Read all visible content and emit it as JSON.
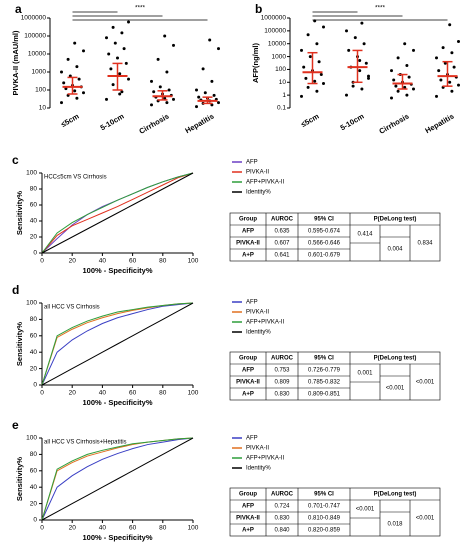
{
  "chart_data": [
    {
      "type": "dot",
      "label": "a",
      "ylabel": "PIVKA-II (mAU/ml)",
      "log_scale": true,
      "sig": "****",
      "ylim": [
        10,
        1000000
      ],
      "yticks": [
        10,
        100,
        1000,
        10000,
        100000,
        1000000
      ],
      "dot_color": "#000000",
      "summary_color": "#e0301e",
      "groups": [
        {
          "name": "≤5cm",
          "points": [
            20,
            35,
            50,
            70,
            90,
            120,
            150,
            180,
            250,
            400,
            600,
            1000,
            2000,
            5000,
            15000,
            40000
          ],
          "median": 150,
          "q1": 60,
          "q3": 500
        },
        {
          "name": "5-10cm",
          "points": [
            30,
            80,
            200,
            400,
            800,
            1500,
            3000,
            6000,
            10000,
            20000,
            40000,
            80000,
            150000,
            300000,
            600000,
            60
          ],
          "median": 600,
          "q1": 100,
          "q3": 3000
        },
        {
          "name": "Cirrhosis",
          "points": [
            15,
            20,
            25,
            30,
            35,
            40,
            50,
            60,
            80,
            100,
            150,
            300,
            1000,
            5000,
            30000,
            100000
          ],
          "median": 45,
          "q1": 28,
          "q3": 90
        },
        {
          "name": "Hepatitis",
          "points": [
            12,
            15,
            18,
            20,
            25,
            28,
            30,
            35,
            40,
            50,
            70,
            100,
            300,
            1500,
            20000,
            60000
          ],
          "median": 25,
          "q1": 18,
          "q3": 40
        }
      ]
    },
    {
      "type": "dot",
      "label": "b",
      "ylabel": "AFP(ng/ml)",
      "log_scale": true,
      "sig": "****",
      "ylim": [
        0.1,
        1000000
      ],
      "yticks": [
        0.1,
        1,
        10,
        100,
        1000,
        10000,
        100000,
        1000000
      ],
      "dot_color": "#000000",
      "summary_color": "#e0301e",
      "groups": [
        {
          "name": "≤5cm",
          "points": [
            0.8,
            2,
            4,
            8,
            12,
            20,
            40,
            80,
            150,
            400,
            1000,
            3000,
            10000,
            50000,
            200000,
            600000
          ],
          "median": 60,
          "q1": 8,
          "q3": 2000
        },
        {
          "name": "5-10cm",
          "points": [
            1,
            3,
            10,
            30,
            80,
            150,
            300,
            1000,
            3000,
            10000,
            30000,
            100000,
            400000,
            5,
            20,
            500
          ],
          "median": 150,
          "q1": 10,
          "q3": 3000
        },
        {
          "name": "Cirrhosis",
          "points": [
            0.6,
            1,
            2,
            3,
            4,
            5,
            7,
            10,
            15,
            25,
            40,
            80,
            200,
            800,
            3000,
            10000
          ],
          "median": 8,
          "q1": 3,
          "q3": 40
        },
        {
          "name": "Hepatitis",
          "points": [
            0.8,
            2,
            4,
            6,
            10,
            15,
            25,
            40,
            80,
            150,
            300,
            800,
            2000,
            5000,
            15000,
            300000
          ],
          "median": 30,
          "q1": 5,
          "q3": 400
        }
      ]
    },
    {
      "type": "line",
      "label": "c",
      "subtitle": "HCC≤5cm VS Cirrhosis",
      "xlabel": "100% - Specificity%",
      "ylabel": "Sensitivity%",
      "xlim": [
        0,
        100
      ],
      "ylim": [
        0,
        100
      ],
      "xticks": [
        0,
        20,
        40,
        60,
        80,
        100
      ],
      "yticks": [
        0,
        20,
        40,
        60,
        80,
        100
      ],
      "x": [
        0,
        10,
        20,
        30,
        40,
        50,
        60,
        70,
        80,
        90,
        100
      ],
      "series": [
        {
          "name": "AFP",
          "color": "#6a3fc4",
          "values": [
            0,
            18,
            35,
            48,
            58,
            66,
            74,
            82,
            89,
            95,
            100
          ]
        },
        {
          "name": "PIVKA-II",
          "color": "#e0301e",
          "values": [
            0,
            22,
            34,
            42,
            50,
            58,
            67,
            76,
            85,
            94,
            100
          ]
        },
        {
          "name": "AFP+PIVKA-II",
          "color": "#2e9e3a",
          "values": [
            0,
            25,
            38,
            48,
            57,
            66,
            74,
            82,
            89,
            95,
            100
          ]
        },
        {
          "name": "Identity%",
          "color": "#000000",
          "values": [
            0,
            10,
            20,
            30,
            40,
            50,
            60,
            70,
            80,
            90,
            100
          ]
        }
      ],
      "table": {
        "header": [
          "Group",
          "AUROC",
          "95% CI",
          "P(DeLong test)"
        ],
        "rows": [
          [
            "AFP",
            "0.635",
            "0.595-0.674"
          ],
          [
            "PIVKA-II",
            "0.607",
            "0.566-0.646"
          ],
          [
            "A+P",
            "0.641",
            "0.601-0.679"
          ]
        ],
        "pvalues": [
          "0.414",
          "0.004",
          "0.834"
        ]
      }
    },
    {
      "type": "line",
      "label": "d",
      "subtitle": "all HCC VS Cirrhosis",
      "xlabel": "100% - Specificity%",
      "ylabel": "Sensitivity%",
      "xlim": [
        0,
        100
      ],
      "ylim": [
        0,
        100
      ],
      "xticks": [
        0,
        20,
        40,
        60,
        80,
        100
      ],
      "yticks": [
        0,
        20,
        40,
        60,
        80,
        100
      ],
      "x": [
        0,
        10,
        20,
        30,
        40,
        50,
        60,
        70,
        80,
        90,
        100
      ],
      "series": [
        {
          "name": "AFP",
          "color": "#3a3fc4",
          "values": [
            0,
            40,
            55,
            66,
            75,
            82,
            87,
            92,
            96,
            98,
            100
          ]
        },
        {
          "name": "PIVKA-II",
          "color": "#e07020",
          "values": [
            0,
            58,
            68,
            76,
            82,
            87,
            91,
            94,
            97,
            99,
            100
          ]
        },
        {
          "name": "AFP+PIVKA-II",
          "color": "#2e9e3a",
          "values": [
            0,
            60,
            70,
            78,
            84,
            89,
            92,
            95,
            97,
            99,
            100
          ]
        },
        {
          "name": "Identity%",
          "color": "#000000",
          "values": [
            0,
            10,
            20,
            30,
            40,
            50,
            60,
            70,
            80,
            90,
            100
          ]
        }
      ],
      "table": {
        "header": [
          "Group",
          "AUROC",
          "95% CI",
          "P(DeLong test)"
        ],
        "rows": [
          [
            "AFP",
            "0.753",
            "0.726-0.779"
          ],
          [
            "PIVKA-II",
            "0.809",
            "0.785-0.832"
          ],
          [
            "A+P",
            "0.830",
            "0.809-0.851"
          ]
        ],
        "pvalues": [
          "0.001",
          "<0.001",
          "<0.001"
        ]
      }
    },
    {
      "type": "line",
      "label": "e",
      "subtitle": "all HCC VS Cirrhosis+Hepatitis",
      "xlabel": "100% - Specificity%",
      "ylabel": "Sensitivity%",
      "xlim": [
        0,
        100
      ],
      "ylim": [
        0,
        100
      ],
      "xticks": [
        0,
        20,
        40,
        60,
        80,
        100
      ],
      "yticks": [
        0,
        20,
        40,
        60,
        80,
        100
      ],
      "x": [
        0,
        10,
        20,
        30,
        40,
        50,
        60,
        70,
        80,
        90,
        100
      ],
      "series": [
        {
          "name": "AFP",
          "color": "#3a3fc4",
          "values": [
            0,
            40,
            54,
            65,
            74,
            81,
            87,
            92,
            95,
            98,
            100
          ]
        },
        {
          "name": "PIVKA-II",
          "color": "#e07020",
          "values": [
            0,
            60,
            70,
            78,
            83,
            88,
            92,
            95,
            97,
            99,
            100
          ]
        },
        {
          "name": "AFP+PIVKA-II",
          "color": "#2e9e3a",
          "values": [
            0,
            62,
            72,
            80,
            85,
            89,
            93,
            95,
            97,
            99,
            100
          ]
        },
        {
          "name": "Identity%",
          "color": "#000000",
          "values": [
            0,
            10,
            20,
            30,
            40,
            50,
            60,
            70,
            80,
            90,
            100
          ]
        }
      ],
      "table": {
        "header": [
          "Group",
          "AUROC",
          "95% CI",
          "P(DeLong test)"
        ],
        "rows": [
          [
            "AFP",
            "0.724",
            "0.701-0.747"
          ],
          [
            "PIVKA-II",
            "0.830",
            "0.810-0.849"
          ],
          [
            "A+P",
            "0.840",
            "0.820-0.859"
          ]
        ],
        "pvalues": [
          "<0.001",
          "0.018",
          "<0.001"
        ]
      }
    }
  ]
}
